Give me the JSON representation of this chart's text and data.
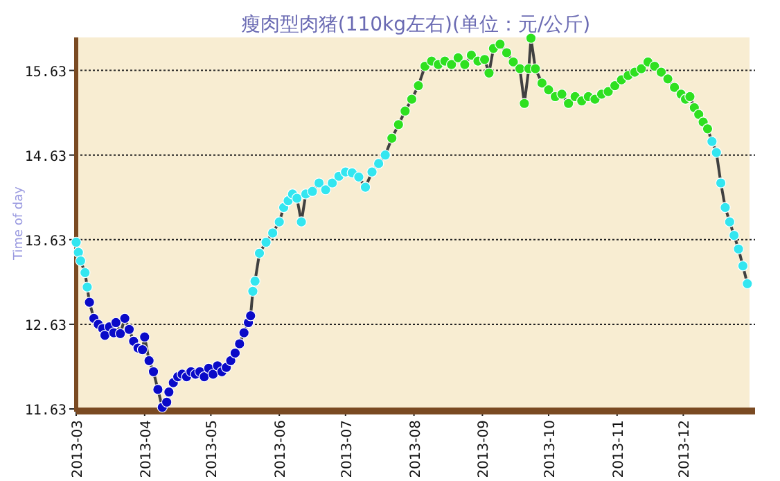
{
  "chart_data": {
    "type": "line",
    "title": "瘦肉型肉猪(110kg左右)(单位：元/公斤)",
    "ylabel": "Time of day",
    "ylim": [
      11.63,
      16.02
    ],
    "yticks": [
      11.63,
      12.63,
      13.63,
      14.63,
      15.63
    ],
    "xlim": [
      "2013-03-01",
      "2013-12-31"
    ],
    "xticks": [
      "2013-03",
      "2013-04",
      "2013-05",
      "2013-06",
      "2013-07",
      "2013-08",
      "2013-09",
      "2013-10",
      "2013-11",
      "2013-12"
    ],
    "grid": "y",
    "marker": "circle",
    "line_style": "solid",
    "series": [
      {
        "color": "#404040",
        "x": [
          "2013-03-01",
          "2013-03-02",
          "2013-03-03",
          "2013-03-05",
          "2013-03-06",
          "2013-03-07",
          "2013-03-09",
          "2013-03-11",
          "2013-03-13",
          "2013-03-14",
          "2013-03-16",
          "2013-03-18",
          "2013-03-19",
          "2013-03-21",
          "2013-03-23",
          "2013-03-25",
          "2013-03-27",
          "2013-03-29",
          "2013-03-31",
          "2013-04-01",
          "2013-04-03",
          "2013-04-05",
          "2013-04-07",
          "2013-04-09",
          "2013-04-11",
          "2013-04-12",
          "2013-04-14",
          "2013-04-16",
          "2013-04-18",
          "2013-04-20",
          "2013-04-22",
          "2013-04-24",
          "2013-04-26",
          "2013-04-28",
          "2013-04-30",
          "2013-05-02",
          "2013-05-04",
          "2013-05-06",
          "2013-05-08",
          "2013-05-10",
          "2013-05-12",
          "2013-05-14",
          "2013-05-16",
          "2013-05-18",
          "2013-05-19",
          "2013-05-20",
          "2013-05-21",
          "2013-05-23",
          "2013-05-26",
          "2013-05-29",
          "2013-06-01",
          "2013-06-03",
          "2013-06-05",
          "2013-06-07",
          "2013-06-09",
          "2013-06-11",
          "2013-06-13",
          "2013-06-16",
          "2013-06-19",
          "2013-06-22",
          "2013-06-25",
          "2013-06-28",
          "2013-07-01",
          "2013-07-04",
          "2013-07-07",
          "2013-07-10",
          "2013-07-13",
          "2013-07-16",
          "2013-07-19",
          "2013-07-22",
          "2013-07-25",
          "2013-07-28",
          "2013-07-31",
          "2013-08-03",
          "2013-08-06",
          "2013-08-09",
          "2013-08-12",
          "2013-08-15",
          "2013-08-18",
          "2013-08-21",
          "2013-08-24",
          "2013-08-27",
          "2013-08-30",
          "2013-09-02",
          "2013-09-04",
          "2013-09-06",
          "2013-09-09",
          "2013-09-12",
          "2013-09-15",
          "2013-09-18",
          "2013-09-20",
          "2013-09-22",
          "2013-09-23",
          "2013-09-25",
          "2013-09-28",
          "2013-10-01",
          "2013-10-04",
          "2013-10-07",
          "2013-10-10",
          "2013-10-13",
          "2013-10-16",
          "2013-10-19",
          "2013-10-22",
          "2013-10-25",
          "2013-10-28",
          "2013-10-31",
          "2013-11-03",
          "2013-11-06",
          "2013-11-09",
          "2013-11-12",
          "2013-11-15",
          "2013-11-18",
          "2013-11-21",
          "2013-11-24",
          "2013-11-27",
          "2013-11-30",
          "2013-12-02",
          "2013-12-04",
          "2013-12-06",
          "2013-12-08",
          "2013-12-10",
          "2013-12-12",
          "2013-12-14",
          "2013-12-16",
          "2013-12-18",
          "2013-12-20",
          "2013-12-22",
          "2013-12-24",
          "2013-12-26",
          "2013-12-28",
          "2013-12-30"
        ],
        "values": [
          13.6,
          13.48,
          13.38,
          13.24,
          13.07,
          12.89,
          12.7,
          12.63,
          12.58,
          12.5,
          12.6,
          12.53,
          12.65,
          12.52,
          12.7,
          12.57,
          12.43,
          12.35,
          12.33,
          12.48,
          12.2,
          12.07,
          11.86,
          11.65,
          11.71,
          11.83,
          11.94,
          12.01,
          12.04,
          12.01,
          12.07,
          12.04,
          12.07,
          12.01,
          12.11,
          12.04,
          12.14,
          12.07,
          12.12,
          12.2,
          12.29,
          12.4,
          12.53,
          12.65,
          12.73,
          13.02,
          13.14,
          13.47,
          13.6,
          13.71,
          13.84,
          14.01,
          14.09,
          14.17,
          14.12,
          13.84,
          14.17,
          14.2,
          14.3,
          14.22,
          14.3,
          14.38,
          14.43,
          14.42,
          14.37,
          14.25,
          14.43,
          14.53,
          14.63,
          14.83,
          14.99,
          15.15,
          15.29,
          15.45,
          15.68,
          15.74,
          15.7,
          15.74,
          15.7,
          15.78,
          15.7,
          15.81,
          15.74,
          15.76,
          15.6,
          15.89,
          15.94,
          15.84,
          15.73,
          15.65,
          15.24,
          15.65,
          16.01,
          15.65,
          15.48,
          15.4,
          15.32,
          15.35,
          15.24,
          15.32,
          15.27,
          15.32,
          15.29,
          15.35,
          15.38,
          15.45,
          15.52,
          15.57,
          15.61,
          15.65,
          15.73,
          15.68,
          15.61,
          15.53,
          15.43,
          15.35,
          15.29,
          15.32,
          15.19,
          15.11,
          15.02,
          14.94,
          14.79,
          14.66,
          14.3,
          14.01,
          13.84,
          13.68,
          13.52,
          13.32,
          13.11
        ],
        "colors": [
          "#33e6f0",
          "#33e6f0",
          "#33e6f0",
          "#33e6f0",
          "#33e6f0",
          "#0a0ac8",
          "#0a0ac8",
          "#0a0ac8",
          "#0a0ac8",
          "#0a0ac8",
          "#0a0ac8",
          "#0a0ac8",
          "#0a0ac8",
          "#0a0ac8",
          "#0a0ac8",
          "#0a0ac8",
          "#0a0ac8",
          "#0a0ac8",
          "#0a0ac8",
          "#0a0ac8",
          "#0a0ac8",
          "#0a0ac8",
          "#0a0ac8",
          "#0a0ac8",
          "#0a0ac8",
          "#0a0ac8",
          "#0a0ac8",
          "#0a0ac8",
          "#0a0ac8",
          "#0a0ac8",
          "#0a0ac8",
          "#0a0ac8",
          "#0a0ac8",
          "#0a0ac8",
          "#0a0ac8",
          "#0a0ac8",
          "#0a0ac8",
          "#0a0ac8",
          "#0a0ac8",
          "#0a0ac8",
          "#0a0ac8",
          "#0a0ac8",
          "#0a0ac8",
          "#0a0ac8",
          "#0a0ac8",
          "#33e6f0",
          "#33e6f0",
          "#33e6f0",
          "#33e6f0",
          "#33e6f0",
          "#33e6f0",
          "#33e6f0",
          "#33e6f0",
          "#33e6f0",
          "#33e6f0",
          "#33e6f0",
          "#33e6f0",
          "#33e6f0",
          "#33e6f0",
          "#33e6f0",
          "#33e6f0",
          "#33e6f0",
          "#33e6f0",
          "#33e6f0",
          "#33e6f0",
          "#33e6f0",
          "#33e6f0",
          "#33e6f0",
          "#33e6f0",
          "#2ee020",
          "#2ee020",
          "#2ee020",
          "#2ee020",
          "#2ee020",
          "#2ee020",
          "#2ee020",
          "#2ee020",
          "#2ee020",
          "#2ee020",
          "#2ee020",
          "#2ee020",
          "#2ee020",
          "#2ee020",
          "#2ee020",
          "#2ee020",
          "#2ee020",
          "#2ee020",
          "#2ee020",
          "#2ee020",
          "#2ee020",
          "#2ee020",
          "#2ee020",
          "#2ee020",
          "#2ee020",
          "#2ee020",
          "#2ee020",
          "#2ee020",
          "#2ee020",
          "#2ee020",
          "#2ee020",
          "#2ee020",
          "#2ee020",
          "#2ee020",
          "#2ee020",
          "#2ee020",
          "#2ee020",
          "#2ee020",
          "#2ee020",
          "#2ee020",
          "#2ee020",
          "#2ee020",
          "#2ee020",
          "#2ee020",
          "#2ee020",
          "#2ee020",
          "#2ee020",
          "#2ee020",
          "#2ee020",
          "#2ee020",
          "#2ee020",
          "#2ee020",
          "#2ee020",
          "#33e6f0",
          "#33e6f0",
          "#33e6f0",
          "#33e6f0",
          "#33e6f0",
          "#33e6f0",
          "#33e6f0",
          "#33e6f0",
          "#33e6f0"
        ]
      }
    ]
  }
}
